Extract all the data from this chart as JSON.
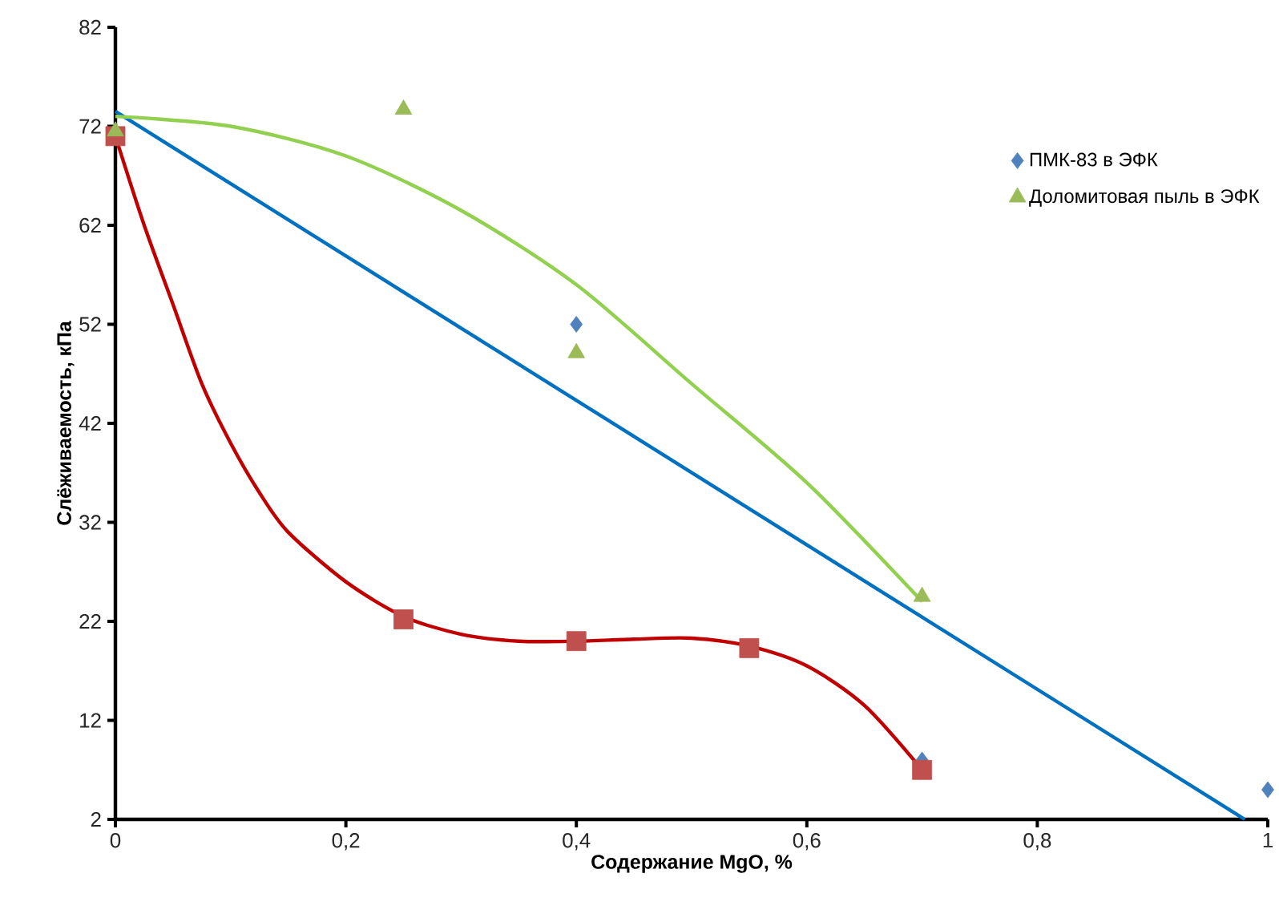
{
  "chart_data": {
    "type": "scatter",
    "xlabel": "Содержание MgO, %",
    "ylabel": "Слёживаемость, кПа",
    "xlim": [
      0,
      1
    ],
    "ylim": [
      2,
      82
    ],
    "xticks": [
      0,
      {
        "value": 0.2,
        "label": "0,2"
      },
      {
        "value": 0.4,
        "label": "0,4"
      },
      {
        "value": 0.6,
        "label": "0,6"
      },
      {
        "value": 0.8,
        "label": "0,8"
      },
      1
    ],
    "yticks": [
      2,
      12,
      22,
      32,
      42,
      52,
      62,
      72,
      82
    ],
    "grid": false,
    "legend": "right",
    "series": [
      {
        "name": "ПМК-83 в ЭФК",
        "marker": "diamond",
        "color": "#4f81bd",
        "x": [
          0.4,
          0.7,
          1
        ],
        "values": [
          52,
          8,
          5
        ]
      },
      {
        "marker": "square",
        "color": "#c0504d",
        "x": [
          0,
          0.25,
          0.4,
          0.55,
          0.7
        ],
        "values": [
          71,
          22.2,
          20,
          19.3,
          7
        ]
      },
      {
        "name": "Доломитовая пыль в ЭФК",
        "type": "scatter",
        "marker": "triangle",
        "color": "#9bbb59",
        "x": [
          0,
          0.25,
          0.4,
          0.7
        ],
        "values": [
          71.5,
          73.7,
          49.1,
          24.5
        ]
      },
      {
        "type": "line",
        "marker": "none",
        "line_style": "solid",
        "color": "#0070c0",
        "x": [
          0,
          0.98
        ],
        "values": [
          73.5,
          2
        ]
      },
      {
        "type": "line",
        "marker": "none",
        "line_style": "solid",
        "color": "#c00000",
        "x": [
          0,
          0.025,
          0.05,
          0.075,
          0.1,
          0.125,
          0.15,
          0.2,
          0.25,
          0.3,
          0.35,
          0.4,
          0.45,
          0.5,
          0.55,
          0.6,
          0.65,
          0.7
        ],
        "values": [
          71,
          62,
          54,
          46,
          40,
          35,
          31,
          26,
          22.5,
          20.7,
          20,
          20,
          20.2,
          20.3,
          19.5,
          17.5,
          13.5,
          7
        ]
      },
      {
        "type": "line",
        "marker": "none",
        "line_style": "solid",
        "color": "#92d050",
        "x": [
          0,
          0.1,
          0.2,
          0.3,
          0.4,
          0.5,
          0.6,
          0.7
        ],
        "values": [
          73,
          72,
          69,
          63.5,
          56,
          46,
          36,
          24
        ]
      }
    ]
  }
}
